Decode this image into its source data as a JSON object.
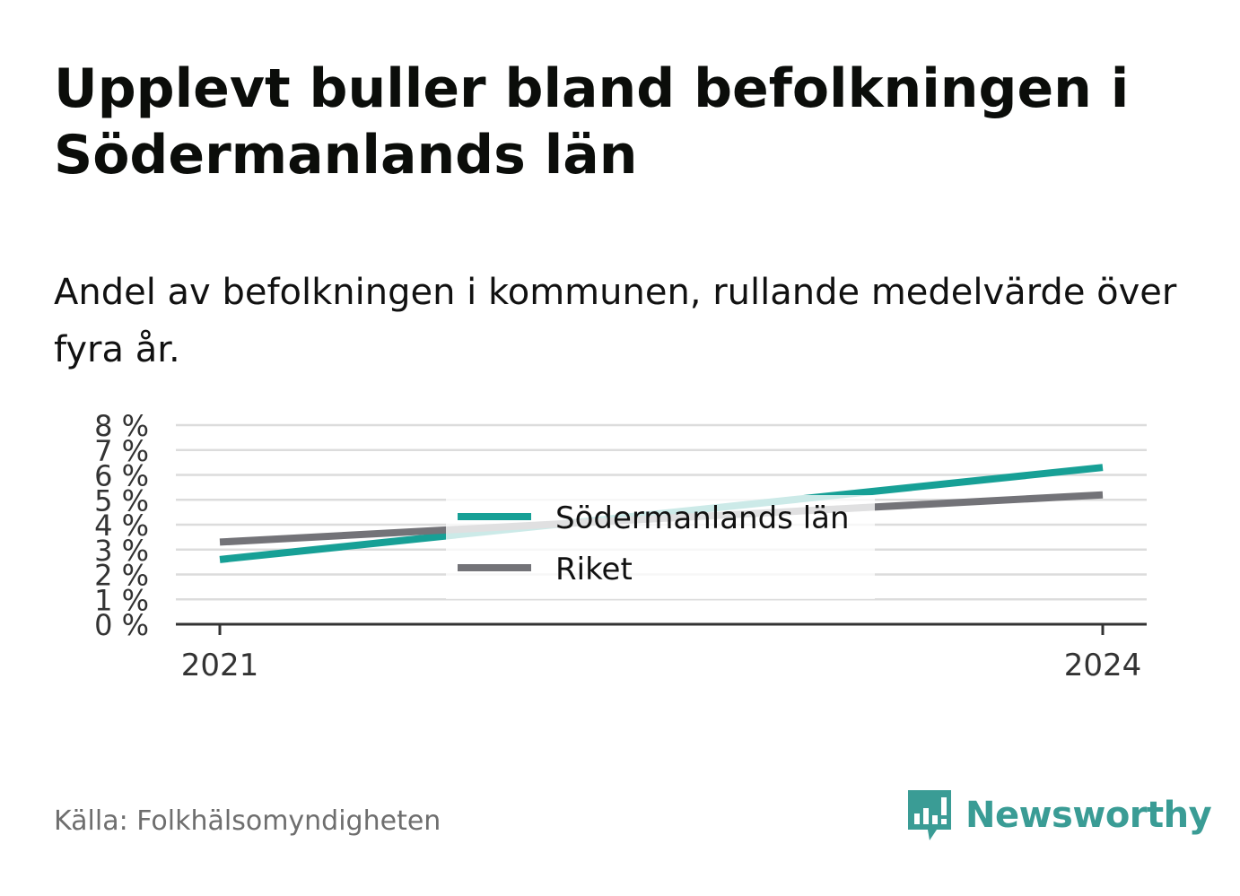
{
  "title": "Upplevt buller bland befolkningen i Södermanlands län",
  "subtitle": "Andel av befolkningen i kommunen, rullande medelvärde över fyra år.",
  "source": "Källa: Folkhälsomyndigheten",
  "brand": "Newsworthy",
  "colors": {
    "accent": "#17a096",
    "national": "#737378",
    "brand": "#3a9c95",
    "grid": "#dcdcdc",
    "axis": "#333333"
  },
  "chart_data": {
    "type": "line",
    "x": [
      2021,
      2024
    ],
    "x_tick_labels": [
      "2021",
      "2024"
    ],
    "ylim": [
      0,
      8
    ],
    "y_ticks": [
      0,
      1,
      2,
      3,
      4,
      5,
      6,
      7,
      8
    ],
    "y_tick_labels": [
      "0 %",
      "1 %",
      "2 %",
      "3 %",
      "4 %",
      "5 %",
      "6 %",
      "7 %",
      "8 %"
    ],
    "grid": true,
    "legend_position": "center",
    "series": [
      {
        "name": "Södermanlands län",
        "color": "#17a096",
        "values": [
          2.6,
          6.3
        ]
      },
      {
        "name": "Riket",
        "color": "#737378",
        "values": [
          3.3,
          5.2
        ]
      }
    ]
  }
}
